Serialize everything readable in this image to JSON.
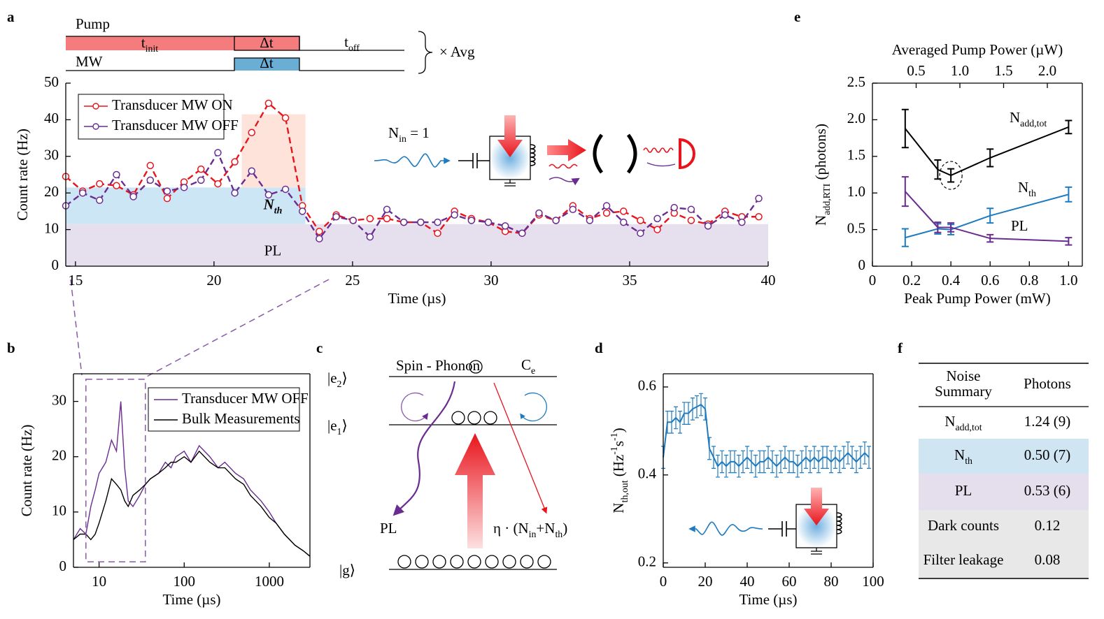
{
  "panel_labels": [
    "a",
    "b",
    "c",
    "d",
    "e",
    "f"
  ],
  "pulse_sequence": {
    "rows": [
      "Pump",
      "MW"
    ],
    "pump_segments": [
      [
        {
          "t": "t"
        },
        {
          "t": "init",
          "pos": "sub"
        }
      ],
      "Δt",
      [
        {
          "t": "t"
        },
        {
          "t": "off",
          "pos": "sub"
        }
      ]
    ],
    "mw_segment": "Δt",
    "repeat": "× Avg"
  },
  "chart_data": [
    {
      "type": "line",
      "xlabel": "Time (µs)",
      "ylabel": "Count rate (Hz)",
      "xlim": [
        14.65,
        40
      ],
      "ylim": [
        0,
        50
      ],
      "xticks": [
        15,
        20,
        25,
        30,
        35,
        40
      ],
      "yticks": [
        0,
        10,
        20,
        30,
        40,
        50
      ],
      "legend": "upper left",
      "dashed": true,
      "marker": "circle",
      "x": [
        14.65,
        15.26,
        15.87,
        16.48,
        17.09,
        17.7,
        18.31,
        18.92,
        19.53,
        20.14,
        20.75,
        21.36,
        21.97,
        22.58,
        23.19,
        23.8,
        24.41,
        25.02,
        25.63,
        26.24,
        26.85,
        27.46,
        28.07,
        28.68,
        29.29,
        29.9,
        30.51,
        31.12,
        31.73,
        32.34,
        32.95,
        33.56,
        34.17,
        34.78,
        35.39,
        36.0,
        36.61,
        37.22,
        37.83,
        38.44,
        39.05,
        39.66
      ],
      "series": [
        {
          "name": "Transducer MW ON",
          "color": "#e8141c",
          "values": [
            24.5,
            20.5,
            22.5,
            22,
            19.5,
            27.5,
            18.5,
            23,
            26.5,
            22.5,
            28.5,
            36.5,
            44.5,
            40.5,
            16.5,
            9.5,
            14,
            12.5,
            13,
            13,
            12,
            12,
            9,
            15,
            13,
            12,
            9.5,
            9,
            14,
            12.5,
            16.5,
            13,
            14.5,
            15,
            12.5,
            10,
            14.5,
            12.5,
            11.5,
            15,
            13.5,
            13.5
          ]
        },
        {
          "name": "Transducer MW OFF",
          "color": "#6a2c91",
          "values": [
            16.5,
            20,
            18,
            25,
            19,
            23.5,
            20.5,
            21.5,
            23.5,
            31,
            20,
            26,
            19.5,
            21,
            15,
            7.5,
            13.5,
            12.5,
            8,
            15.5,
            12,
            12,
            12,
            14,
            12.5,
            12,
            11,
            9,
            14.5,
            12.5,
            15.5,
            12.5,
            16.5,
            12,
            9,
            13,
            16,
            15.5,
            11,
            14,
            12,
            18.5
          ]
        }
      ],
      "bands": [
        {
          "label": [
            {
              "t": "N"
            },
            {
              "t": "th",
              "pos": "sub"
            }
          ],
          "color": "#cde6f5",
          "xlim": [
            14.65,
            23.3
          ],
          "ylim": [
            11.5,
            21.5
          ]
        },
        {
          "label": "PL",
          "color": "#e6e0ee",
          "xlim": [
            14.65,
            40
          ],
          "ylim": [
            0,
            11.5
          ]
        },
        {
          "color": "#fde3da",
          "xlim": [
            21,
            23.3
          ],
          "ylim": [
            21.5,
            41.5
          ]
        }
      ],
      "annotation": [
        {
          "t": "N"
        },
        {
          "t": "in",
          "pos": "sub"
        },
        {
          "t": " = 1"
        }
      ]
    },
    {
      "type": "line",
      "xlabel": "Time (µs)",
      "ylabel": "Count rate (Hz)",
      "xscale": "log",
      "xlim": [
        5,
        3000
      ],
      "ylim": [
        0,
        35
      ],
      "xticks": [
        10,
        100,
        1000
      ],
      "yticks": [
        0,
        10,
        20,
        30
      ],
      "legend": "upper right",
      "x": [
        5,
        6,
        7,
        8,
        9,
        10,
        12,
        14,
        16,
        18,
        20,
        22,
        25,
        30,
        35,
        40,
        50,
        60,
        70,
        80,
        100,
        120,
        150,
        200,
        250,
        300,
        400,
        500,
        600,
        800,
        1000,
        1200,
        1500,
        2000,
        2500,
        3000
      ],
      "series": [
        {
          "name": "Transducer MW OFF",
          "color": "#6a2c91",
          "values": [
            5,
            7,
            6,
            11,
            14,
            17,
            19,
            23,
            21,
            30,
            18,
            12,
            11,
            13,
            15,
            16,
            17,
            19,
            18,
            20,
            21,
            19,
            22,
            20,
            18,
            19,
            17,
            16,
            14,
            12,
            10,
            8,
            6,
            4,
            3,
            2
          ]
        },
        {
          "name": "Bulk Measurements",
          "color": "#000000",
          "values": [
            5,
            6,
            6,
            5,
            6,
            8,
            12,
            16,
            15,
            14,
            12,
            11,
            13,
            14,
            15,
            16,
            17,
            18,
            19,
            19,
            20,
            19,
            21,
            19,
            18,
            18,
            16,
            15,
            13,
            11,
            9,
            8,
            6,
            4,
            3,
            2
          ]
        }
      ],
      "zoom_box": {
        "xlim": [
          7,
          35
        ],
        "ylim": [
          1,
          34
        ],
        "color": "#8a5aa8"
      }
    },
    {
      "type": "line",
      "xlabel": "Time (µs)",
      "ylabel": [
        {
          "t": "N"
        },
        {
          "t": "th,out",
          "pos": "sub"
        },
        {
          "t": " (Hz"
        },
        {
          "t": "-1",
          "pos": "super"
        },
        {
          "t": "s"
        },
        {
          "t": "-1",
          "pos": "super"
        },
        {
          "t": ")"
        }
      ],
      "xlim": [
        0,
        100
      ],
      "ylim": [
        0.19,
        0.63
      ],
      "xticks": [
        0,
        20,
        40,
        60,
        80,
        100
      ],
      "yticks": [
        0.2,
        0.4,
        0.6
      ],
      "x": [
        0,
        2,
        4,
        6,
        8,
        10,
        12,
        14,
        16,
        18,
        20,
        22,
        24,
        26,
        28,
        30,
        32,
        34,
        36,
        38,
        40,
        42,
        44,
        46,
        48,
        50,
        52,
        54,
        56,
        58,
        60,
        62,
        64,
        66,
        68,
        70,
        72,
        74,
        76,
        78,
        80,
        82,
        84,
        86,
        88,
        90,
        92,
        94,
        96,
        98
      ],
      "series": [
        {
          "color": "#1f7bbf",
          "values": [
            0.44,
            0.52,
            0.52,
            0.53,
            0.52,
            0.54,
            0.54,
            0.55,
            0.555,
            0.56,
            0.55,
            0.46,
            0.44,
            0.42,
            0.43,
            0.42,
            0.43,
            0.43,
            0.42,
            0.43,
            0.44,
            0.43,
            0.42,
            0.43,
            0.43,
            0.44,
            0.43,
            0.42,
            0.43,
            0.44,
            0.43,
            0.43,
            0.42,
            0.43,
            0.44,
            0.43,
            0.44,
            0.43,
            0.44,
            0.44,
            0.43,
            0.44,
            0.43,
            0.44,
            0.45,
            0.44,
            0.43,
            0.44,
            0.45,
            0.44
          ],
          "errors": [
            0.025,
            0.025,
            0.025,
            0.025,
            0.025,
            0.025,
            0.025,
            0.025,
            0.025,
            0.025,
            0.025,
            0.025,
            0.025,
            0.025,
            0.025,
            0.025,
            0.025,
            0.025,
            0.025,
            0.025,
            0.025,
            0.025,
            0.025,
            0.025,
            0.025,
            0.025,
            0.025,
            0.025,
            0.025,
            0.025,
            0.025,
            0.025,
            0.025,
            0.025,
            0.025,
            0.025,
            0.025,
            0.025,
            0.025,
            0.025,
            0.025,
            0.025,
            0.025,
            0.025,
            0.025,
            0.025,
            0.025,
            0.025,
            0.025,
            0.025
          ]
        }
      ]
    },
    {
      "type": "line",
      "xlabel": "Peak Pump Power (mW)",
      "x2label": "Averaged Pump Power (µW)",
      "ylabel": [
        {
          "t": "N"
        },
        {
          "t": "add,RTI",
          "pos": "sub"
        },
        {
          "t": " (photons)"
        }
      ],
      "xlim": [
        0,
        1.07
      ],
      "x2lim": [
        0,
        2.4
      ],
      "ylim": [
        0,
        2.5
      ],
      "xticks": [
        0,
        0.2,
        0.4,
        0.6,
        0.8,
        {
          "value": 1,
          "label": "1.0"
        }
      ],
      "x2ticks": [
        0.5,
        {
          "value": 1,
          "label": "1.0"
        },
        1.5,
        {
          "value": 2,
          "label": "2.0"
        }
      ],
      "yticks": [
        0,
        0.5,
        {
          "value": 1,
          "label": "1.0"
        },
        1.5,
        {
          "value": 2,
          "label": "2.0"
        },
        2.5
      ],
      "x": [
        0.167,
        0.333,
        0.4,
        0.6,
        1.0
      ],
      "series": [
        {
          "name": [
            {
              "t": "N"
            },
            {
              "t": "add,tot",
              "pos": "sub"
            }
          ],
          "color": "#000000",
          "values": [
            1.88,
            1.32,
            1.24,
            1.48,
            1.9
          ],
          "errors": [
            0.26,
            0.13,
            0.09,
            0.12,
            0.09
          ]
        },
        {
          "name": [
            {
              "t": "N"
            },
            {
              "t": "th",
              "pos": "sub"
            }
          ],
          "color": "#1f7bbf",
          "values": [
            0.39,
            0.51,
            0.5,
            0.69,
            0.98
          ],
          "errors": [
            0.12,
            0.07,
            0.07,
            0.1,
            0.1
          ]
        },
        {
          "name": "PL",
          "color": "#6a2c91",
          "values": [
            1.02,
            0.53,
            0.53,
            0.38,
            0.34
          ],
          "errors": [
            0.2,
            0.07,
            0.06,
            0.05,
            0.05
          ]
        }
      ]
    }
  ],
  "level_diagram": {
    "levels": [
      [
        {
          "t": "|e"
        },
        {
          "t": "2",
          "pos": "sub"
        },
        {
          "t": "⟩"
        }
      ],
      [
        {
          "t": "|e"
        },
        {
          "t": "1",
          "pos": "sub"
        },
        {
          "t": "⟩"
        }
      ],
      [
        {
          "t": "|g⟩"
        }
      ]
    ],
    "spin_phonon": "Spin - Phonon",
    "coupling": [
      {
        "t": "C"
      },
      {
        "t": "e",
        "pos": "sub"
      }
    ],
    "decay": "PL",
    "emission": [
      {
        "t": "η · (N"
      },
      {
        "t": "in",
        "pos": "sub"
      },
      {
        "t": "+N"
      },
      {
        "t": "th",
        "pos": "sub"
      },
      {
        "t": ")"
      }
    ]
  },
  "table": {
    "header": [
      [
        "Noise",
        "Summary"
      ],
      "Photons"
    ],
    "rows": [
      [
        [
          {
            "t": "N"
          },
          {
            "t": "add,tot",
            "pos": "sub"
          }
        ],
        "1.24 (9)"
      ],
      [
        [
          {
            "t": "N"
          },
          {
            "t": "th",
            "pos": "sub"
          }
        ],
        "0.50 (7)"
      ],
      [
        "PL",
        "0.53 (6)"
      ],
      [
        "Dark counts",
        "0.12"
      ],
      [
        "Filter leakage",
        "0.08"
      ]
    ],
    "row_colors": [
      "#ffffff",
      "#cfe5f2",
      "#e5deec",
      "#e8e8e8",
      "#e8e8e8"
    ]
  }
}
